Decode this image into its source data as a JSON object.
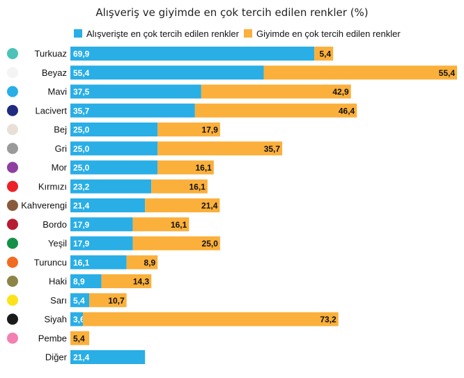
{
  "chart_data": {
    "type": "bar",
    "orientation": "horizontal",
    "stacked": true,
    "title": "Alışveriş ve giyimde en çok tercih edilen renkler (%)",
    "legend_position": "top",
    "grid": false,
    "categories": [
      "Turkuaz",
      "Beyaz",
      "Mavi",
      "Lacivert",
      "Bej",
      "Gri",
      "Mor",
      "Kırmızı",
      "Kahverengi",
      "Bordo",
      "Yeşil",
      "Turuncu",
      "Haki",
      "Sarı",
      "Siyah",
      "Pembe",
      "Diğer"
    ],
    "category_colors": [
      "#4dc3b8",
      "#f4f4f4",
      "#29aee6",
      "#1f2a80",
      "#e8e0d6",
      "#9a9a9a",
      "#8e3fa0",
      "#ec2127",
      "#8a5a3c",
      "#b81c33",
      "#149146",
      "#f26b22",
      "#8c8448",
      "#fbe21a",
      "#1a1a1a",
      "#f280b3",
      "#ffffff"
    ],
    "series": [
      {
        "name": "Alışverişte en çok tercih edilen renkler",
        "color": "#29aee6",
        "values": [
          69.9,
          55.4,
          37.5,
          35.7,
          25.0,
          25.0,
          25.0,
          23.2,
          21.4,
          17.9,
          17.9,
          16.1,
          8.9,
          5.4,
          3.6,
          null,
          21.4
        ],
        "labels": [
          "69,9",
          "55,4",
          "37,5",
          "35,7",
          "25,0",
          "25,0",
          "25,0",
          "23,2",
          "21,4",
          "17,9",
          "17,9",
          "16,1",
          "8,9",
          "5,4",
          "3,6",
          "",
          "21,4"
        ]
      },
      {
        "name": "Giyimde en çok tercih edilen renkler",
        "color": "#fbb03b",
        "values": [
          5.4,
          55.4,
          42.9,
          46.4,
          17.9,
          35.7,
          16.1,
          16.1,
          21.4,
          16.1,
          25.0,
          8.9,
          14.3,
          10.7,
          73.2,
          5.4,
          null
        ],
        "labels": [
          "5,4",
          "55,4",
          "42,9",
          "46,4",
          "17,9",
          "35,7",
          "16,1",
          "16,1",
          "21,4",
          "16,1",
          "25,0",
          "8,9",
          "14,3",
          "10,7",
          "73,2",
          "5,4",
          ""
        ]
      }
    ],
    "xlim": [
      0,
      110.8
    ]
  }
}
